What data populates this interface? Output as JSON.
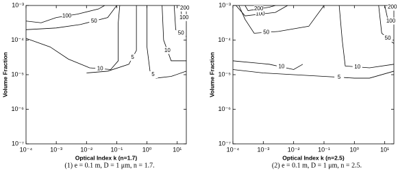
{
  "chart_data": [
    {
      "type": "contour",
      "xlabel": "Optical Index k (n=1.7)",
      "ylabel": "Volume Fraction",
      "caption": "(1) e = 0.1 m, D = 1 μm, n = 1.7.",
      "log_x": true,
      "log_y": true,
      "color": "#000000",
      "xlim": [
        0.0001,
        20
      ],
      "ylim": [
        1e-07,
        0.001
      ],
      "xticks": [
        {
          "value": 0.0001,
          "label": "10⁻⁴"
        },
        {
          "value": 0.001,
          "label": "10⁻³"
        },
        {
          "value": 0.01,
          "label": "10⁻²"
        },
        {
          "value": 0.1,
          "label": "10⁻¹"
        },
        {
          "value": 1,
          "label": "10⁰"
        },
        {
          "value": 10,
          "label": "10¹"
        }
      ],
      "yticks": [
        {
          "value": 1e-07,
          "label": "10⁻⁷"
        },
        {
          "value": 1e-06,
          "label": "10⁻⁶"
        },
        {
          "value": 1e-05,
          "label": "10⁻⁵"
        },
        {
          "value": 0.0001,
          "label": "10⁻⁴"
        },
        {
          "value": 0.001,
          "label": "10⁻³"
        }
      ],
      "series": [
        {
          "name": "100",
          "x": [
            0.0001,
            0.000316,
            0.001,
            0.00501,
            0.0251,
            0.0398
          ],
          "y": [
            0.000355,
            0.000316,
            0.000447,
            0.000562,
            0.000794,
            0.001
          ]
        },
        {
          "name": "50",
          "x": [
            0.0001,
            0.001,
            0.00631,
            0.0501,
            0.1
          ],
          "y": [
            0.0002,
            0.000224,
            0.000282,
            0.000447,
            0.001
          ]
        },
        {
          "name": "10",
          "x": [
            0.0001,
            0.000631,
            0.00251,
            0.0126,
            0.0631,
            0.112,
            0.112,
            0.126
          ],
          "y": [
            0.000112,
            6.31e-05,
            2.82e-05,
            1.58e-05,
            1.41e-05,
            2.51e-05,
            0.000316,
            0.001
          ]
        },
        {
          "name": "5",
          "x": [
            0.01,
            0.0501,
            0.251,
            0.447,
            0.447
          ],
          "y": [
            1.12e-05,
            1.26e-05,
            2e-05,
            5.01e-05,
            0.001
          ]
        },
        {
          "name": "5",
          "x": [
            1,
            1,
            1.26,
            2.0,
            6.31,
            20
          ],
          "y": [
            0.001,
            6.31e-05,
            1.26e-05,
            7.94e-06,
            8.91e-06,
            1.26e-05
          ]
        },
        {
          "name": "10",
          "x": [
            3.16,
            3.55,
            6.31,
            20
          ],
          "y": [
            0.001,
            0.0001,
            2.51e-05,
            2.51e-05
          ]
        },
        {
          "name": "50",
          "x": [
            7.94,
            8.91,
            20
          ],
          "y": [
            0.001,
            0.0002,
            0.000126
          ]
        },
        {
          "name": "100",
          "x": [
            12.6,
            14.1,
            20
          ],
          "y": [
            0.001,
            0.000501,
            0.000398
          ]
        },
        {
          "name": "200",
          "x": [
            15.8,
            20
          ],
          "y": [
            0.001,
            0.000708
          ]
        }
      ]
    },
    {
      "type": "contour",
      "xlabel": "Optical Index k (n=2.5)",
      "ylabel": "Volume Fraction",
      "caption": "(2) e = 0.1 m, D = 1 μm, n = 2.5.",
      "log_x": true,
      "log_y": true,
      "color": "#000000",
      "xlim": [
        0.0001,
        20
      ],
      "ylim": [
        1e-07,
        0.001
      ],
      "xticks": [
        {
          "value": 0.0001,
          "label": "10⁻⁴"
        },
        {
          "value": 0.001,
          "label": "10⁻³"
        },
        {
          "value": 0.01,
          "label": "10⁻²"
        },
        {
          "value": 0.1,
          "label": "10⁻¹"
        },
        {
          "value": 1,
          "label": "10⁰"
        },
        {
          "value": 10,
          "label": "10¹"
        }
      ],
      "yticks": [
        {
          "value": 1e-07,
          "label": "10⁻⁷"
        },
        {
          "value": 1e-06,
          "label": "10⁻⁶"
        },
        {
          "value": 1e-05,
          "label": "10⁻⁵"
        },
        {
          "value": 0.0001,
          "label": "10⁻⁴"
        },
        {
          "value": 0.001,
          "label": "10⁻³"
        }
      ],
      "series": [
        {
          "name": "5",
          "x": [
            0.0001,
            0.001,
            0.01,
            0.1,
            1,
            3.16,
            20
          ],
          "y": [
            1.41e-05,
            1.12e-05,
            1e-05,
            8.91e-06,
            7.94e-06,
            7.94e-06,
            1.26e-05
          ]
        },
        {
          "name": "10",
          "x": [
            0.0001,
            0.00158,
            0.01,
            0.02
          ],
          "y": [
            2.51e-05,
            2e-05,
            1.41e-05,
            2e-05
          ]
        },
        {
          "name": "10",
          "x": [
            0.316,
            0.398,
            0.501,
            3.16,
            20
          ],
          "y": [
            0.001,
            0.0001,
            1.78e-05,
            1.58e-05,
            2e-05
          ]
        },
        {
          "name": "50",
          "x": [
            0.000158,
            0.000251,
            0.000501,
            0.00316,
            0.0316,
            0.1
          ],
          "y": [
            0.001,
            0.000398,
            0.000158,
            0.000178,
            0.000251,
            0.001
          ]
        },
        {
          "name": "100",
          "x": [
            0.000126,
            0.000251,
            0.00251,
            0.00631
          ],
          "y": [
            0.001,
            0.000501,
            0.000631,
            0.001
          ]
        },
        {
          "name": "200",
          "x": [
            0.000251,
            0.000316,
            0.00158,
            0.00251
          ],
          "y": [
            0.001,
            0.000708,
            0.000891,
            0.001
          ]
        },
        {
          "name": "50",
          "x": [
            6.31,
            7.94,
            20
          ],
          "y": [
            0.001,
            0.000158,
            7.94e-05
          ]
        },
        {
          "name": "100",
          "x": [
            10,
            12.6,
            20
          ],
          "y": [
            0.001,
            0.000398,
            0.000316
          ]
        },
        {
          "name": "200",
          "x": [
            15.8,
            20
          ],
          "y": [
            0.001,
            0.000794
          ]
        }
      ]
    }
  ]
}
